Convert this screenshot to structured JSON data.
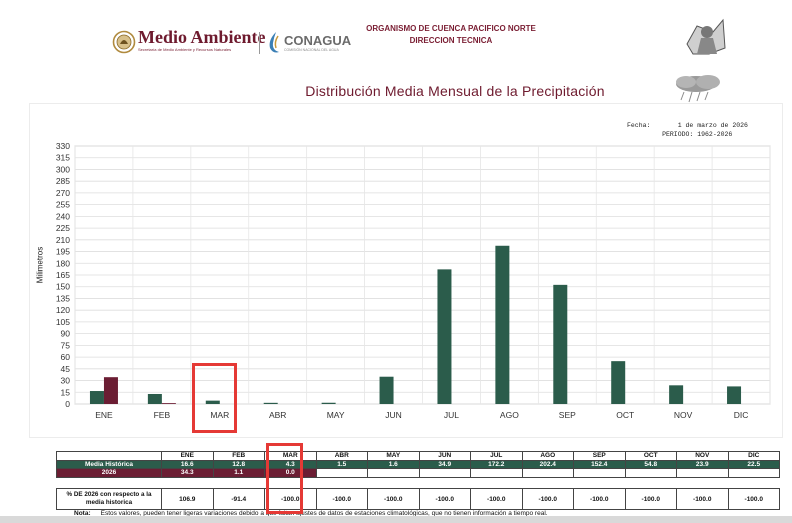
{
  "header": {
    "logo_ma_text": "Medio Ambiente",
    "logo_ma_sub": "Secretaría de Medio Ambiente y Recursos Naturales",
    "logo_cg_text": "CONAGUA",
    "logo_cg_sub": "COMISIÓN NACIONAL DEL AGUA",
    "org_line1": "ORGANISMO DE CUENCA PACIFICO NORTE",
    "org_line2": "DIRECCION TECNICA"
  },
  "date_block": "Fecha:       1 de marzo de 2026\n         PERIODO: 1962-2026",
  "note": {
    "label": "Nota:",
    "text": "Estos valores, pueden tener ligeras variaciones debido a que faltan ajustes de datos de estaciones climatológicas, que no tienen información a tiempo real."
  },
  "colors": {
    "historic": "#2b5c4b",
    "current": "#6b1d33",
    "title": "#6e1a2e",
    "highlight": "#e53935"
  },
  "icons": [
    "eagle-seal-icon",
    "water-drop-icon",
    "flag-icon",
    "cloud-icon"
  ],
  "chart_data": {
    "type": "bar",
    "title": "Distribución Media Mensual de la Precipitación",
    "ylabel": "Milimetros",
    "xlabel": "",
    "ylim": [
      0,
      330
    ],
    "yticks": [
      0,
      15,
      30,
      45,
      60,
      75,
      90,
      105,
      120,
      135,
      150,
      165,
      180,
      195,
      210,
      225,
      240,
      255,
      270,
      285,
      300,
      315,
      330
    ],
    "grid": true,
    "categories": [
      "ENE",
      "FEB",
      "MAR",
      "ABR",
      "MAY",
      "JUN",
      "JUL",
      "AGO",
      "SEP",
      "OCT",
      "NOV",
      "DIC"
    ],
    "series": [
      {
        "name": "Media Histórica",
        "values": [
          16.6,
          12.8,
          4.3,
          1.5,
          1.6,
          34.9,
          172.2,
          202.4,
          152.4,
          54.8,
          23.9,
          22.5
        ],
        "color": "#2b5c4b"
      },
      {
        "name": "2026",
        "values": [
          34.3,
          1.1,
          0.0,
          null,
          null,
          null,
          null,
          null,
          null,
          null,
          null,
          null
        ],
        "color": "#6b1d33"
      }
    ],
    "pct_label": "% DE 2026 con respecto a la media historica",
    "pct_values": [
      "106.9",
      "-91.4",
      "-100.0",
      "-100.0",
      "-100.0",
      "-100.0",
      "-100.0",
      "-100.0",
      "-100.0",
      "-100.0",
      "-100.0",
      "-100.0"
    ],
    "table_hist": [
      "16.6",
      "12.8",
      "4.3",
      "1.5",
      "1.6",
      "34.9",
      "172.2",
      "202.4",
      "152.4",
      "54.8",
      "23.9",
      "22.5"
    ],
    "table_year": [
      "34.3",
      "1.1",
      "0.0",
      "",
      "",
      "",
      "",
      "",
      "",
      "",
      "",
      ""
    ]
  }
}
